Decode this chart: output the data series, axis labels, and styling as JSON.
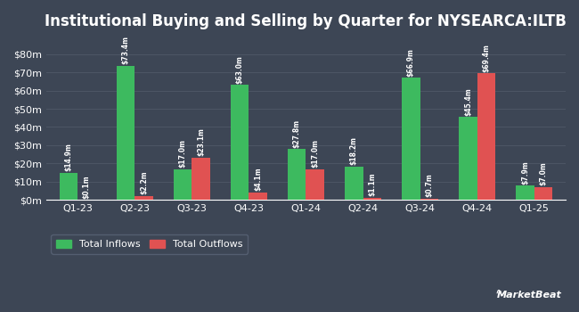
{
  "title": "Institutional Buying and Selling by Quarter for NYSEARCA:ILTB",
  "quarters": [
    "Q1-23",
    "Q2-23",
    "Q3-23",
    "Q4-23",
    "Q1-24",
    "Q2-24",
    "Q3-24",
    "Q4-24",
    "Q1-25"
  ],
  "inflows": [
    14.9,
    73.4,
    17.0,
    63.0,
    27.8,
    18.2,
    66.9,
    45.4,
    7.9
  ],
  "outflows": [
    0.1,
    2.2,
    23.1,
    4.1,
    17.0,
    1.1,
    0.7,
    69.4,
    7.0
  ],
  "inflow_labels": [
    "$14.9m",
    "$73.4m",
    "$17.0m",
    "$63.0m",
    "$27.8m",
    "$18.2m",
    "$66.9m",
    "$45.4m",
    "$7.9m"
  ],
  "outflow_labels": [
    "$0.1m",
    "$2.2m",
    "$23.1m",
    "$4.1m",
    "$17.0m",
    "$1.1m",
    "$0.7m",
    "$69.4m",
    "$7.0m"
  ],
  "inflow_color": "#3dba5f",
  "outflow_color": "#e05252",
  "bg_color": "#3d4655",
  "grid_color": "#4d5665",
  "text_color": "#ffffff",
  "bar_width": 0.32,
  "ylim": [
    0,
    90
  ],
  "yticks": [
    0,
    10,
    20,
    30,
    40,
    50,
    60,
    70,
    80
  ],
  "ytick_labels": [
    "$0m",
    "$10m",
    "$20m",
    "$30m",
    "$40m",
    "$50m",
    "$60m",
    "$70m",
    "$80m"
  ],
  "legend_inflow": "Total Inflows",
  "legend_outflow": "Total Outflows",
  "label_fontsize": 5.5,
  "title_fontsize": 12,
  "axis_fontsize": 8
}
